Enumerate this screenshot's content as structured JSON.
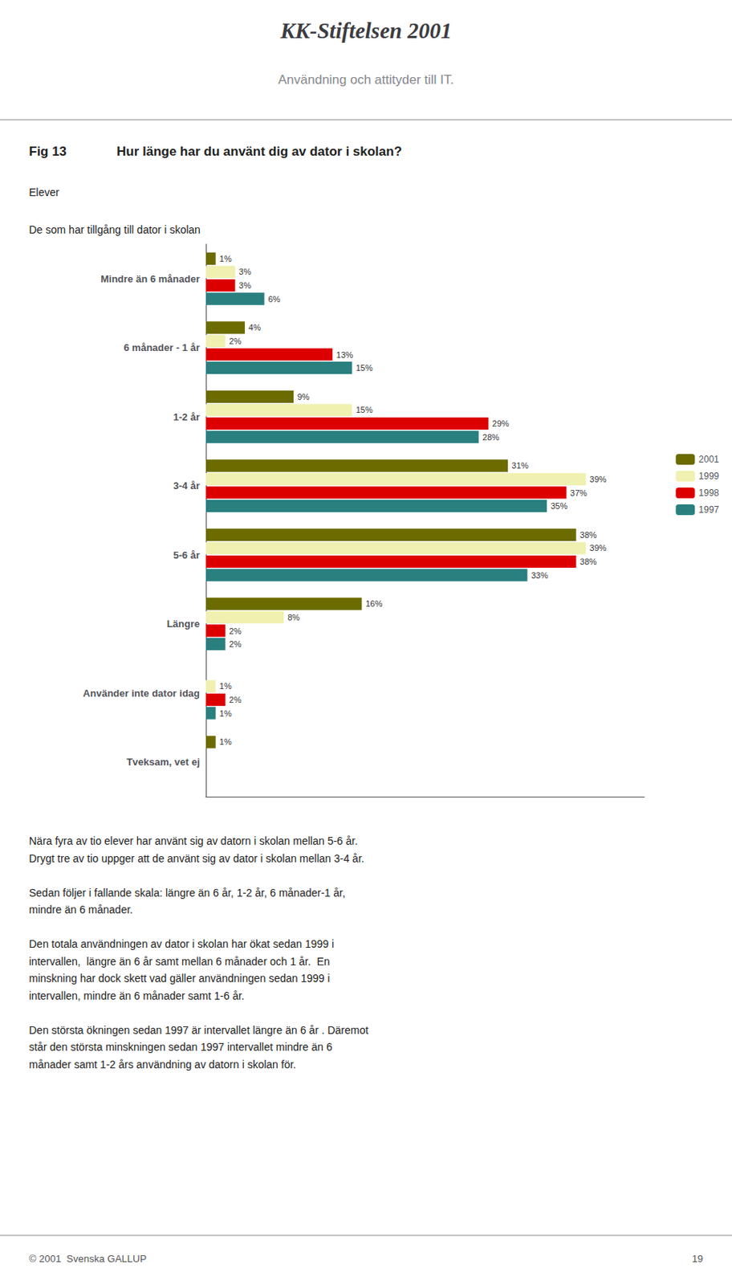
{
  "chart_data": {
    "type": "bar",
    "orientation": "horizontal",
    "title": "KK-Stiftelsen 2001",
    "subtitle": "Användning och attityder till IT.",
    "annotations": [
      "Fig 13",
      "Hur länge har du använt dig av dator i skolan?",
      "Elever",
      "De som har tillgång till dator i skolan",
      [
        "Nära fyra av tio elever har använt sig av datorn i skolan mellan 5-6 år.",
        "Drygt tre av tio uppger att de använt sig av dator i skolan mellan 3-4 år."
      ],
      [
        "Sedan följer i fallande skala: längre än 6 år, 1-2 år, 6 månader-1 år,",
        "mindre än 6 månader."
      ],
      [
        "Den totala användningen av dator i skolan har ökat sedan 1999 i",
        "intervallen,  längre än 6 år samt mellan 6 månader och 1 år.  En",
        "minskning har dock skett vad gäller användningen sedan 1999 i",
        "intervallen, mindre än 6 månader samt 1-6 år."
      ],
      [
        "Den största ökningen sedan 1997 är intervallet längre än 6 år . Däremot",
        "står den största minskningen sedan 1997 intervallet mindre än 6",
        "månader samt 1-2 års användning av datorn i skolan för."
      ],
      "© 2001  Svenska GALLUP",
      "19"
    ],
    "categories": [
      "Mindre än 6 månader",
      "6 månader - 1 år",
      "1-2 år",
      "3-4 år",
      "5-6 år",
      "Längre",
      "Använder inte dator idag",
      "Tveksam, vet ej"
    ],
    "series": [
      {
        "name": "2001",
        "color": "#6b6b00",
        "values": [
          1,
          4,
          9,
          31,
          38,
          16,
          0,
          1
        ],
        "value_labels": [
          "1%",
          "4%",
          "9%",
          "31%",
          "38%",
          "16%",
          null,
          "1%"
        ]
      },
      {
        "name": "1999",
        "color": "#f0f0b0",
        "values": [
          3,
          2,
          15,
          39,
          39,
          8,
          1,
          0
        ],
        "value_labels": [
          "3%",
          "2%",
          "15%",
          "39%",
          "39%",
          "8%",
          "1%",
          null
        ]
      },
      {
        "name": "1998",
        "color": "#dd0000",
        "values": [
          3,
          13,
          29,
          37,
          38,
          2,
          2,
          0
        ],
        "value_labels": [
          "3%",
          "13%",
          "29%",
          "37%",
          "38%",
          "2%",
          "2%",
          null
        ]
      },
      {
        "name": "1997",
        "color": "#2a7f7f",
        "values": [
          6,
          15,
          28,
          35,
          33,
          2,
          1,
          0
        ],
        "value_labels": [
          "6%",
          "15%",
          "28%",
          "35%",
          "33%",
          "2%",
          "1%",
          null
        ]
      }
    ],
    "xlim": [
      0,
      45
    ],
    "data_labels": true,
    "tick_labels": "y",
    "legend": "right",
    "grid": false
  }
}
